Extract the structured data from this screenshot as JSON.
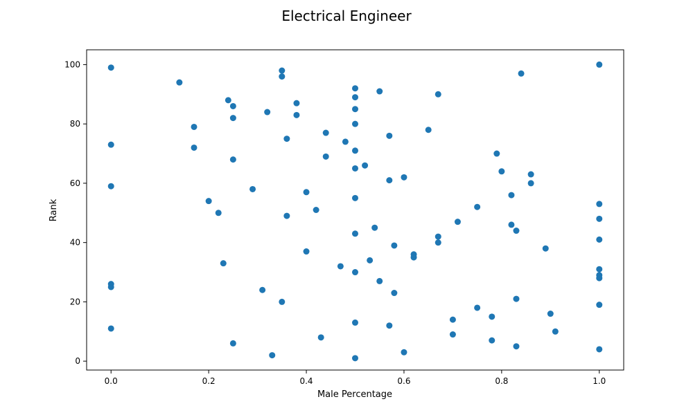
{
  "chart_data": {
    "type": "scatter",
    "title": "Electrical Engineer",
    "xlabel": "Male Percentage",
    "ylabel": "Rank",
    "xlim": [
      -0.05,
      1.05
    ],
    "ylim": [
      -3,
      105
    ],
    "xticks": [
      0.0,
      0.2,
      0.4,
      0.6,
      0.8,
      1.0
    ],
    "xtick_labels": [
      "0.0",
      "0.2",
      "0.4",
      "0.6",
      "0.8",
      "1.0"
    ],
    "yticks": [
      0,
      20,
      40,
      60,
      80,
      100
    ],
    "ytick_labels": [
      "0",
      "20",
      "40",
      "60",
      "80",
      "100"
    ],
    "grid": false,
    "marker_color": "#1f77b4",
    "points": [
      [
        0.0,
        99
      ],
      [
        0.0,
        73
      ],
      [
        0.0,
        59
      ],
      [
        0.0,
        26
      ],
      [
        0.0,
        25
      ],
      [
        0.0,
        11
      ],
      [
        0.14,
        94
      ],
      [
        0.17,
        79
      ],
      [
        0.17,
        72
      ],
      [
        0.2,
        54
      ],
      [
        0.22,
        50
      ],
      [
        0.23,
        33
      ],
      [
        0.24,
        88
      ],
      [
        0.25,
        86
      ],
      [
        0.25,
        82
      ],
      [
        0.25,
        68
      ],
      [
        0.25,
        6
      ],
      [
        0.29,
        58
      ],
      [
        0.31,
        24
      ],
      [
        0.32,
        84
      ],
      [
        0.33,
        2
      ],
      [
        0.35,
        98
      ],
      [
        0.35,
        96
      ],
      [
        0.35,
        20
      ],
      [
        0.36,
        75
      ],
      [
        0.36,
        49
      ],
      [
        0.38,
        87
      ],
      [
        0.38,
        83
      ],
      [
        0.4,
        57
      ],
      [
        0.4,
        37
      ],
      [
        0.42,
        51
      ],
      [
        0.43,
        8
      ],
      [
        0.44,
        77
      ],
      [
        0.44,
        69
      ],
      [
        0.47,
        32
      ],
      [
        0.48,
        74
      ],
      [
        0.5,
        92
      ],
      [
        0.5,
        89
      ],
      [
        0.5,
        85
      ],
      [
        0.5,
        80
      ],
      [
        0.5,
        71
      ],
      [
        0.5,
        65
      ],
      [
        0.5,
        55
      ],
      [
        0.5,
        43
      ],
      [
        0.5,
        30
      ],
      [
        0.5,
        13
      ],
      [
        0.5,
        1
      ],
      [
        0.52,
        66
      ],
      [
        0.53,
        34
      ],
      [
        0.54,
        45
      ],
      [
        0.55,
        91
      ],
      [
        0.55,
        27
      ],
      [
        0.57,
        76
      ],
      [
        0.57,
        61
      ],
      [
        0.57,
        12
      ],
      [
        0.58,
        39
      ],
      [
        0.58,
        23
      ],
      [
        0.6,
        62
      ],
      [
        0.6,
        3
      ],
      [
        0.62,
        36
      ],
      [
        0.62,
        35
      ],
      [
        0.65,
        78
      ],
      [
        0.67,
        90
      ],
      [
        0.67,
        42
      ],
      [
        0.67,
        40
      ],
      [
        0.7,
        14
      ],
      [
        0.7,
        9
      ],
      [
        0.71,
        47
      ],
      [
        0.75,
        52
      ],
      [
        0.75,
        18
      ],
      [
        0.78,
        15
      ],
      [
        0.78,
        7
      ],
      [
        0.79,
        70
      ],
      [
        0.8,
        64
      ],
      [
        0.82,
        56
      ],
      [
        0.82,
        46
      ],
      [
        0.83,
        44
      ],
      [
        0.83,
        21
      ],
      [
        0.83,
        5
      ],
      [
        0.84,
        97
      ],
      [
        0.86,
        63
      ],
      [
        0.86,
        60
      ],
      [
        0.89,
        38
      ],
      [
        0.9,
        16
      ],
      [
        0.91,
        10
      ],
      [
        1.0,
        100
      ],
      [
        1.0,
        53
      ],
      [
        1.0,
        48
      ],
      [
        1.0,
        41
      ],
      [
        1.0,
        31
      ],
      [
        1.0,
        29
      ],
      [
        1.0,
        28
      ],
      [
        1.0,
        19
      ],
      [
        1.0,
        4
      ]
    ]
  }
}
